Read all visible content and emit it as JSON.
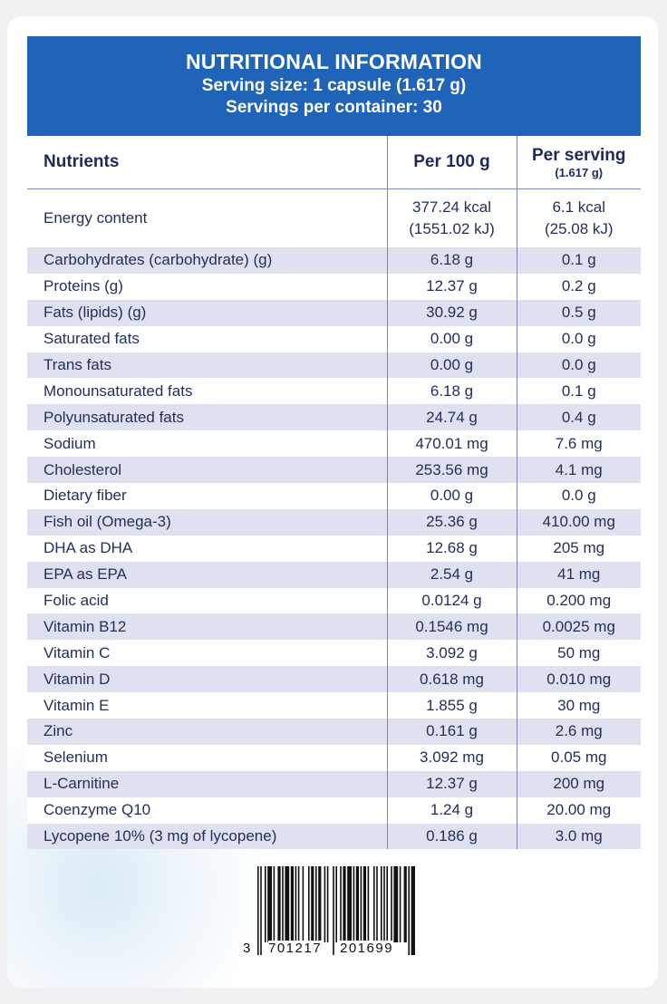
{
  "header": {
    "title": "NUTRITIONAL INFORMATION",
    "serving_size": "Serving size: 1 capsule (1.617 g)",
    "servings_per_container": "Servings per container: 30"
  },
  "table": {
    "col_nutrients": "Nutrients",
    "col_per100": "Per 100 g",
    "col_perserving": "Per serving",
    "col_perserving_sub": "(1.617 g)",
    "energy": {
      "name": "Energy content",
      "per100_kcal": "377.24 kcal",
      "per100_kj": "(1551.02 kJ)",
      "serving_kcal": "6.1 kcal",
      "serving_kj": "(25.08 kJ)"
    },
    "rows": [
      {
        "name": "Carbohydrates (carbohydrate) (g)",
        "per100": "6.18 g",
        "serving": "0.1 g"
      },
      {
        "name": "Proteins (g)",
        "per100": "12.37 g",
        "serving": "0.2 g"
      },
      {
        "name": "Fats (lipids) (g)",
        "per100": "30.92 g",
        "serving": "0.5 g"
      },
      {
        "name": "Saturated fats",
        "per100": "0.00 g",
        "serving": "0.0 g"
      },
      {
        "name": "Trans fats",
        "per100": "0.00 g",
        "serving": "0.0 g"
      },
      {
        "name": "Monounsaturated fats",
        "per100": "6.18 g",
        "serving": "0.1 g"
      },
      {
        "name": "Polyunsaturated fats",
        "per100": "24.74 g",
        "serving": "0.4 g"
      },
      {
        "name": "Sodium",
        "per100": "470.01 mg",
        "serving": "7.6 mg"
      },
      {
        "name": "Cholesterol",
        "per100": "253.56 mg",
        "serving": "4.1 mg"
      },
      {
        "name": "Dietary fiber",
        "per100": "0.00 g",
        "serving": "0.0 g"
      },
      {
        "name": "Fish oil (Omega-3)",
        "per100": "25.36 g",
        "serving": "410.00 mg"
      },
      {
        "name": "DHA as DHA",
        "per100": "12.68 g",
        "serving": "205 mg"
      },
      {
        "name": "EPA as EPA",
        "per100": "2.54 g",
        "serving": "41 mg"
      },
      {
        "name": "Folic acid",
        "per100": "0.0124 g",
        "serving": "0.200 mg"
      },
      {
        "name": "Vitamin B12",
        "per100": "0.1546 mg",
        "serving": "0.0025 mg"
      },
      {
        "name": "Vitamin C",
        "per100": "3.092 g",
        "serving": "50 mg"
      },
      {
        "name": "Vitamin D",
        "per100": "0.618 mg",
        "serving": "0.010 mg"
      },
      {
        "name": "Vitamin E",
        "per100": "1.855 g",
        "serving": "30 mg"
      },
      {
        "name": "Zinc",
        "per100": "0.161 g",
        "serving": "2.6 mg"
      },
      {
        "name": "Selenium",
        "per100": "3.092 mg",
        "serving": "0.05 mg"
      },
      {
        "name": "L-Carnitine",
        "per100": "12.37 g",
        "serving": "200 mg"
      },
      {
        "name": "Coenzyme Q10",
        "per100": "1.24 g",
        "serving": "20.00 mg"
      },
      {
        "name": "Lycopene 10% (3 mg of lycopene)",
        "per100": "0.186 g",
        "serving": "3.0 mg"
      }
    ]
  },
  "barcode": {
    "first_digit": "3",
    "left_group": "701217",
    "right_group": "201699"
  },
  "colors": {
    "header_bg": "#1f64b8",
    "stripe": "#dfe1f1",
    "text": "#23305a"
  }
}
